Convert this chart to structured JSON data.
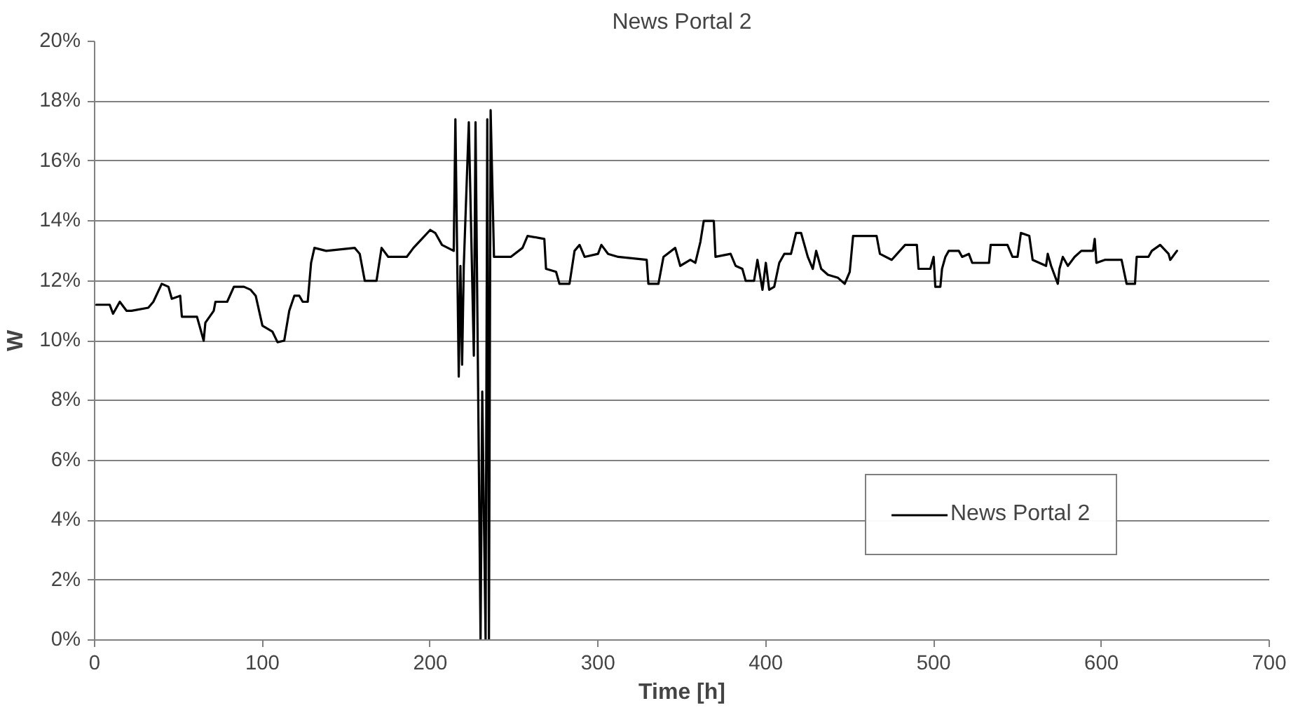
{
  "chart_data": {
    "type": "line",
    "title": "News Portal 2",
    "xlabel": "Time [h]",
    "ylabel": "W",
    "xlim": [
      0,
      700
    ],
    "xticks": [
      0,
      100,
      200,
      300,
      400,
      500,
      600,
      700
    ],
    "ylim": [
      0,
      20
    ],
    "yticks": [
      {
        "value": 0,
        "label": "0%"
      },
      {
        "value": 2,
        "label": "2%"
      },
      {
        "value": 4,
        "label": "4%"
      },
      {
        "value": 6,
        "label": "6%"
      },
      {
        "value": 8,
        "label": "8%"
      },
      {
        "value": 10,
        "label": "10%"
      },
      {
        "value": 12,
        "label": "12%"
      },
      {
        "value": 14,
        "label": "14%"
      },
      {
        "value": 16,
        "label": "16%"
      },
      {
        "value": 18,
        "label": "18%"
      },
      {
        "value": 20,
        "label": "20%"
      }
    ],
    "grid": "y",
    "legend": "bottom right",
    "marker": "none",
    "line_style": "solid",
    "series": [
      {
        "name": "News Portal 2",
        "color": "#000000",
        "x": [
          1,
          9,
          11,
          15,
          19,
          22,
          32,
          35,
          40,
          44,
          46,
          51,
          52,
          61,
          65,
          66,
          71,
          72,
          79,
          83,
          89,
          93,
          96,
          100,
          106,
          109,
          113,
          116,
          119,
          122,
          124,
          127,
          129,
          131,
          138,
          155,
          158,
          161,
          168,
          171,
          175,
          186,
          190,
          195,
          200,
          203,
          207,
          214,
          215,
          217,
          218,
          219,
          220,
          223,
          226,
          227,
          230,
          231,
          233,
          234,
          235,
          236,
          238,
          241,
          248,
          255,
          258,
          268,
          269,
          275,
          277,
          283,
          286,
          289,
          292,
          300,
          302,
          306,
          312,
          329,
          330,
          336,
          339,
          346,
          349,
          355,
          358,
          361,
          363,
          369,
          370,
          379,
          382,
          386,
          388,
          393,
          395,
          398,
          400,
          402,
          405,
          408,
          411,
          415,
          418,
          421,
          425,
          428,
          430,
          433,
          437,
          443,
          447,
          450,
          452,
          466,
          468,
          475,
          483,
          490,
          491,
          498,
          500,
          501,
          504,
          505,
          507,
          509,
          515,
          517,
          521,
          523,
          533,
          534,
          544,
          547,
          550,
          552,
          557,
          559,
          567,
          568,
          570,
          574,
          575,
          577,
          580,
          584,
          588,
          595,
          596,
          597,
          602,
          612,
          615,
          620,
          621,
          628,
          630,
          635,
          640,
          641,
          645
        ],
        "values": [
          11.2,
          11.2,
          10.9,
          11.3,
          11.0,
          11.0,
          11.1,
          11.3,
          11.9,
          11.8,
          11.4,
          11.5,
          10.8,
          10.8,
          10.0,
          10.6,
          11.0,
          11.3,
          11.3,
          11.8,
          11.8,
          11.7,
          11.5,
          10.5,
          10.3,
          9.95,
          10.0,
          11.0,
          11.5,
          11.5,
          11.3,
          11.3,
          12.6,
          13.1,
          13.0,
          13.1,
          12.9,
          12.0,
          12.0,
          13.1,
          12.8,
          12.8,
          13.1,
          13.4,
          13.7,
          13.6,
          13.2,
          13.0,
          17.4,
          8.8,
          12.5,
          9.2,
          12.5,
          17.3,
          9.5,
          17.3,
          0,
          8.3,
          0,
          17.4,
          0,
          17.7,
          12.8,
          12.8,
          12.8,
          13.1,
          13.5,
          13.4,
          12.4,
          12.3,
          11.9,
          11.9,
          13.0,
          13.2,
          12.8,
          12.9,
          13.2,
          12.9,
          12.8,
          12.7,
          11.9,
          11.9,
          12.8,
          13.1,
          12.5,
          12.7,
          12.6,
          13.3,
          14.0,
          14.0,
          12.8,
          12.9,
          12.5,
          12.4,
          12.0,
          12.0,
          12.7,
          11.7,
          12.6,
          11.7,
          11.8,
          12.6,
          12.9,
          12.9,
          13.6,
          13.6,
          12.8,
          12.4,
          13.0,
          12.4,
          12.2,
          12.1,
          11.9,
          12.3,
          13.5,
          13.5,
          12.9,
          12.7,
          13.2,
          13.2,
          12.4,
          12.4,
          12.8,
          11.8,
          11.8,
          12.4,
          12.8,
          13.0,
          13.0,
          12.8,
          12.9,
          12.6,
          12.6,
          13.2,
          13.2,
          12.8,
          12.8,
          13.6,
          13.5,
          12.7,
          12.5,
          12.9,
          12.5,
          11.9,
          12.4,
          12.8,
          12.5,
          12.8,
          13.0,
          13.0,
          13.4,
          12.6,
          12.7,
          12.7,
          11.9,
          11.9,
          12.8,
          12.8,
          13.0,
          13.2,
          12.9,
          12.7,
          13.0
        ]
      }
    ]
  }
}
